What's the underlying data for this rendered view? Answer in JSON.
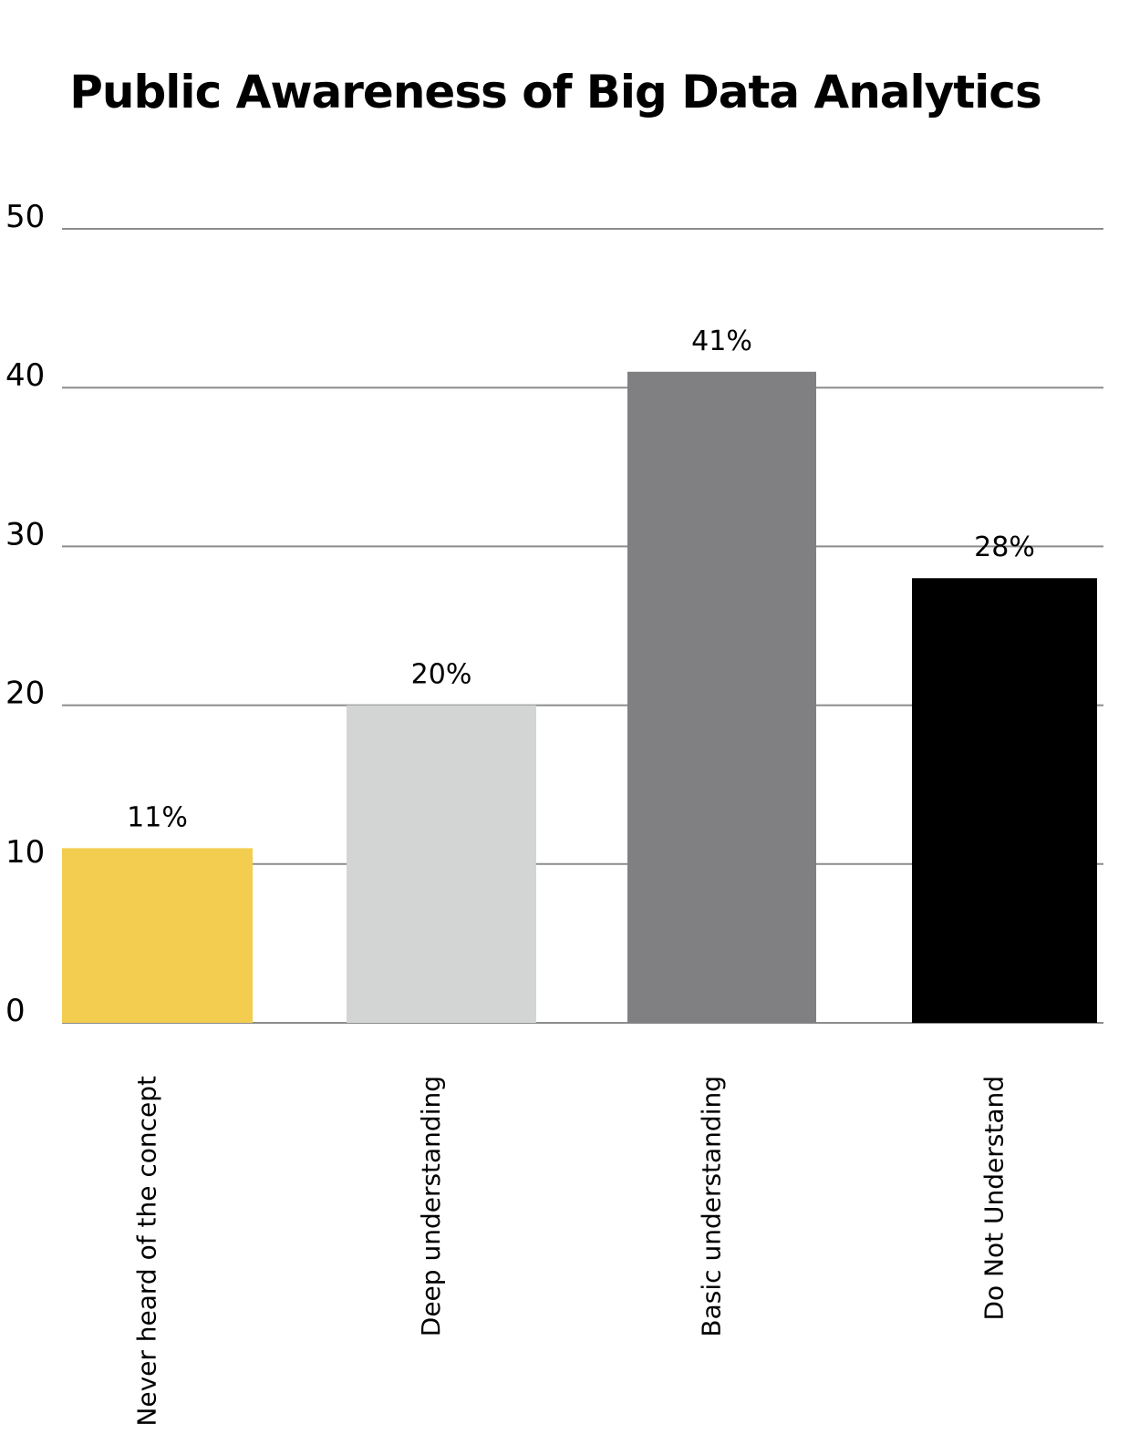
{
  "chart_data": {
    "type": "bar",
    "title": "Public Awareness of Big Data Analytics",
    "xlabel": "",
    "ylabel": "",
    "categories": [
      "Never heard of the concept",
      "Deep understanding",
      "Basic understanding",
      "Do Not Understand"
    ],
    "values": [
      11,
      20,
      41,
      28
    ],
    "data_labels": [
      "11%",
      "20%",
      "41%",
      "28%"
    ],
    "colors": [
      "#F3CD4F",
      "#D3D4D4",
      "#807F82",
      "#000000"
    ],
    "ylim": [
      0,
      50
    ],
    "yticks": [
      0,
      10,
      20,
      30,
      40,
      50
    ],
    "grid": true,
    "legend": "none"
  }
}
